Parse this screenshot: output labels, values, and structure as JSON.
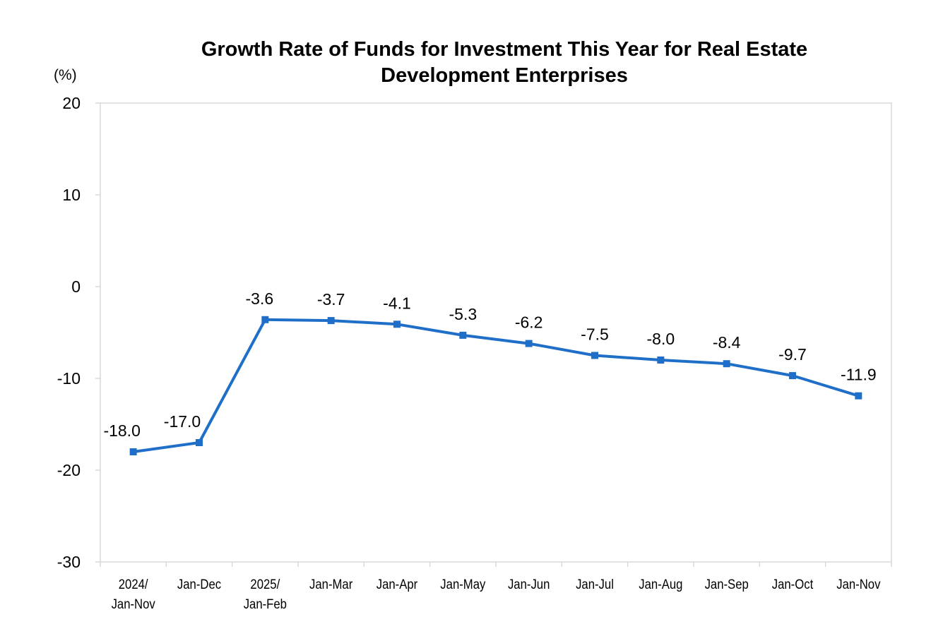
{
  "chart_data": {
    "type": "line",
    "title": "Growth Rate of Funds for Investment This Year for Real Estate Development Enterprises",
    "title_lines": [
      "Growth Rate of Funds for Investment This Year for Real Estate",
      "Development Enterprises"
    ],
    "unit_label": "(%)",
    "xlabel": "",
    "ylabel": "",
    "ylim": [
      -30,
      20
    ],
    "yticks": [
      "20",
      "10",
      "0",
      "-10",
      "-20",
      "-30"
    ],
    "ytick_values": [
      20,
      10,
      0,
      -10,
      -20,
      -30
    ],
    "grid": false,
    "legend": "none",
    "categories": [
      [
        "2024/",
        "Jan-Nov"
      ],
      [
        "Jan-Dec"
      ],
      [
        "2025/",
        "Jan-Feb"
      ],
      [
        "Jan-Mar"
      ],
      [
        "Jan-Apr"
      ],
      [
        "Jan-May"
      ],
      [
        "Jan-Jun"
      ],
      [
        "Jan-Jul"
      ],
      [
        "Jan-Aug"
      ],
      [
        "Jan-Sep"
      ],
      [
        "Jan-Oct"
      ],
      [
        "Jan-Nov"
      ]
    ],
    "values": [
      -18.0,
      -17.0,
      -3.6,
      -3.7,
      -4.1,
      -5.3,
      -6.2,
      -7.5,
      -8.0,
      -8.4,
      -9.7,
      -11.9
    ],
    "value_labels": [
      "-18.0",
      "-17.0",
      "-3.6",
      "-3.7",
      "-4.1",
      "-5.3",
      "-6.2",
      "-7.5",
      "-8.0",
      "-8.4",
      "-9.7",
      "-11.9"
    ],
    "line_color": "#1F6FC9",
    "marker": "square",
    "axis_color": "#D9D9D9"
  }
}
